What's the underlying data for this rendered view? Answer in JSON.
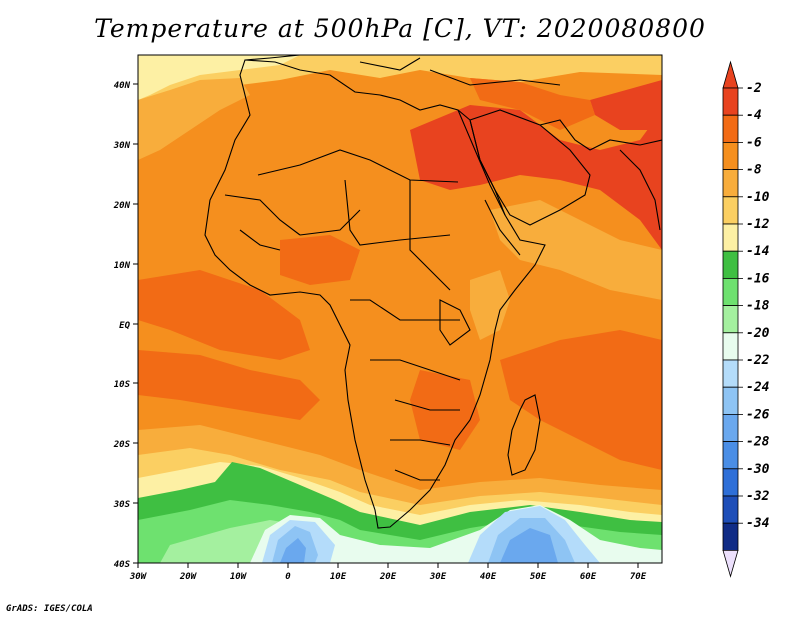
{
  "title": "Temperature at 500hPa [C], VT: 2020080800",
  "credit": "GrADS: IGES/COLA",
  "chart_data": {
    "type": "heatmap",
    "variable": "Temperature at 500hPa [C]",
    "valid_time": "2020080800",
    "lat_ticks": [
      "40N",
      "30N",
      "20N",
      "10N",
      "EQ",
      "10S",
      "20S",
      "30S",
      "40S"
    ],
    "lon_ticks": [
      "30W",
      "20W",
      "10W",
      "0",
      "10E",
      "20E",
      "30E",
      "40E",
      "50E",
      "60E",
      "70E"
    ],
    "lon_range": [
      -30,
      75
    ],
    "lat_range": [
      -40,
      45
    ],
    "colorbar": {
      "labels": [
        "-2",
        "-4",
        "-6",
        "-8",
        "-10",
        "-12",
        "-14",
        "-16",
        "-18",
        "-20",
        "-22",
        "-24",
        "-26",
        "-28",
        "-30",
        "-32",
        "-34"
      ],
      "colors": [
        "#e8431f",
        "#f26b15",
        "#f58f1e",
        "#f8ad3c",
        "#fbcf62",
        "#fdf0a4",
        "#3fbf42",
        "#6ee16f",
        "#a4f09f",
        "#e8fcee",
        "#b4dcfa",
        "#8ec4f4",
        "#6aa8ee",
        "#4a8ee6",
        "#2e6fd8",
        "#1e4eb8",
        "#102c86"
      ],
      "over_color": "#e8431f",
      "under_color": "#ece0fc"
    }
  }
}
